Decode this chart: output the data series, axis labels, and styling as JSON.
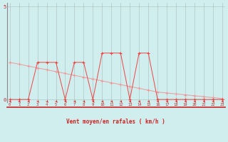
{
  "xlabel": "Vent moyen/en rafales ( km/h )",
  "x_ticks": [
    0,
    1,
    2,
    3,
    4,
    5,
    6,
    7,
    8,
    9,
    10,
    11,
    12,
    13,
    14,
    15,
    16,
    17,
    18,
    19,
    20,
    21,
    22,
    23
  ],
  "xlim": [
    0,
    23
  ],
  "ylim": [
    0,
    5
  ],
  "yticks": [
    0,
    5
  ],
  "background_color": "#d0eeee",
  "grid_color": "#aabbbb",
  "mean_wind_x": [
    0,
    1,
    2,
    3,
    4,
    5,
    6,
    7,
    8,
    9,
    10,
    11,
    12,
    13,
    14,
    15,
    16,
    17,
    18,
    19,
    20,
    21,
    22,
    23
  ],
  "mean_wind_y": [
    0,
    0,
    0,
    2,
    2,
    2,
    0,
    2,
    2,
    0,
    2.5,
    2.5,
    2.5,
    0,
    2.5,
    2.5,
    0,
    0,
    0,
    0,
    0,
    0,
    0,
    0
  ],
  "gust_wind_x": [
    0,
    1,
    2,
    3,
    4,
    5,
    6,
    7,
    8,
    9,
    10,
    11,
    12,
    13,
    14,
    15,
    16,
    17,
    18,
    19,
    20,
    21,
    22,
    23
  ],
  "gust_wind_y": [
    2.0,
    1.9,
    1.8,
    1.7,
    1.6,
    1.5,
    1.4,
    1.3,
    1.2,
    1.1,
    1.0,
    0.9,
    0.8,
    0.7,
    0.6,
    0.5,
    0.4,
    0.35,
    0.3,
    0.25,
    0.2,
    0.15,
    0.1,
    0.05
  ],
  "mean_color": "#ee4444",
  "gust_color": "#ee9999",
  "tick_color": "#cc2222",
  "arrow_color": "#cc2222"
}
